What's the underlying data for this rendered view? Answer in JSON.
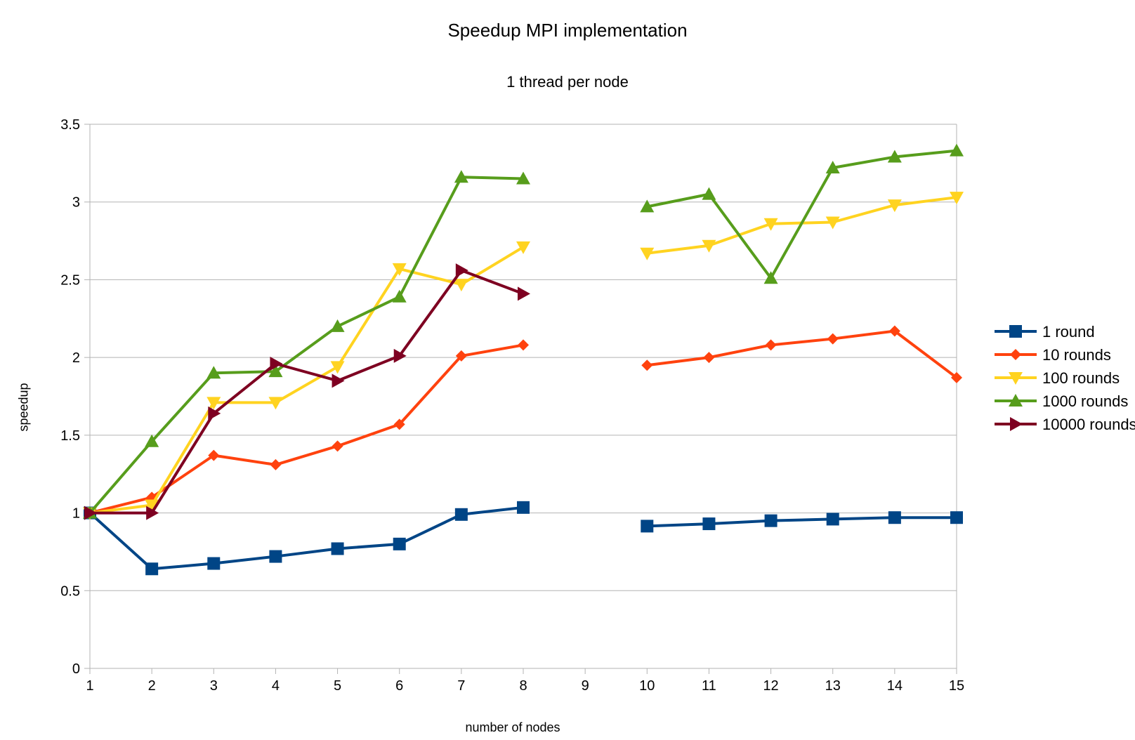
{
  "chart_data": {
    "type": "line",
    "title": "Speedup MPI implementation",
    "subtitle": "1 thread per node",
    "xlabel": "number of nodes",
    "ylabel": "speedup",
    "x": [
      "1",
      "2",
      "3",
      "4",
      "5",
      "6",
      "7",
      "8",
      "9",
      "10",
      "11",
      "12",
      "13",
      "14",
      "15"
    ],
    "ylim": [
      0,
      3.5
    ],
    "yticks": [
      "0",
      "0.5",
      "1",
      "1.5",
      "2",
      "2.5",
      "3",
      "3.5"
    ],
    "grid": true,
    "legend_position": "right",
    "series": [
      {
        "name": "1 round",
        "color": "#004586",
        "marker": "square",
        "values": [
          1,
          0.64,
          0.675,
          0.72,
          0.77,
          0.8,
          0.99,
          1.035,
          null,
          0.915,
          0.93,
          0.95,
          0.96,
          0.97,
          0.97
        ]
      },
      {
        "name": "10 rounds",
        "color": "#ff420e",
        "marker": "diamond",
        "values": [
          1,
          1.1,
          1.37,
          1.31,
          1.43,
          1.57,
          2.01,
          2.08,
          null,
          1.95,
          2.0,
          2.08,
          2.12,
          2.17,
          1.87
        ]
      },
      {
        "name": "100 rounds",
        "color": "#ffd320",
        "marker": "triangle-down",
        "values": [
          1,
          1.05,
          1.71,
          1.71,
          1.94,
          2.57,
          2.47,
          2.71,
          null,
          2.67,
          2.72,
          2.86,
          2.87,
          2.98,
          3.03
        ]
      },
      {
        "name": "1000 rounds",
        "color": "#579d1c",
        "marker": "triangle-up",
        "values": [
          1,
          1.46,
          1.9,
          1.91,
          2.2,
          2.39,
          3.16,
          3.15,
          null,
          2.97,
          3.05,
          2.51,
          3.22,
          3.29,
          3.33
        ]
      },
      {
        "name": "10000 rounds",
        "color": "#7e0021",
        "marker": "triangle-right",
        "values": [
          1,
          1.0,
          1.64,
          1.96,
          1.85,
          2.01,
          2.56,
          2.41,
          null,
          null,
          null,
          null,
          null,
          null,
          null
        ]
      }
    ]
  }
}
